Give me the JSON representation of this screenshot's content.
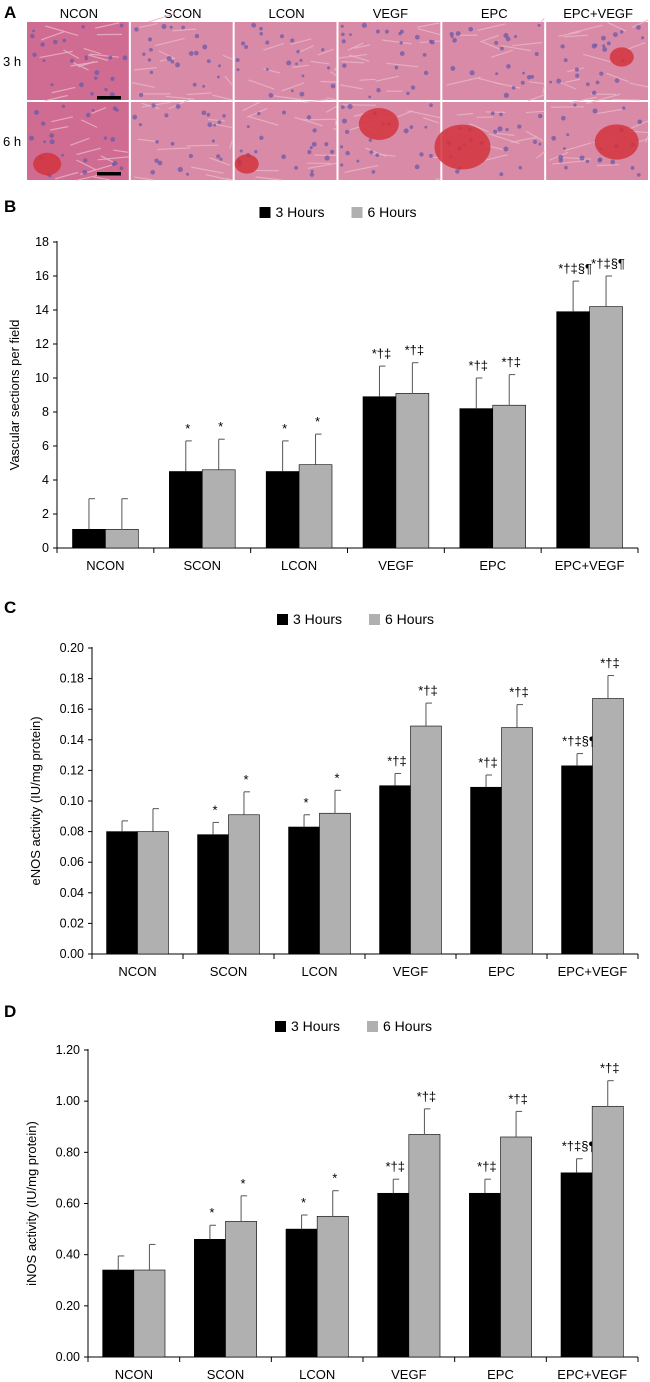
{
  "panel_a": {
    "letter": "A",
    "columns": [
      "NCON",
      "SCON",
      "LCON",
      "VEGF",
      "EPC",
      "EPC+VEGF"
    ],
    "rows": [
      "3 h",
      "6 h"
    ],
    "colors": {
      "tissue": "#d98aa6",
      "stroma": "#e8b7c8",
      "nuclei": "#6a5aa8",
      "blood": "#d2323c"
    }
  },
  "chart_data": [
    {
      "id": "B",
      "type": "bar",
      "letter": "B",
      "categories": [
        "NCON",
        "SCON",
        "LCON",
        "VEGF",
        "EPC",
        "EPC+VEGF"
      ],
      "series": [
        {
          "name": "3 Hours",
          "color": "#000000",
          "values": [
            1.1,
            4.5,
            4.5,
            8.9,
            8.2,
            13.9
          ],
          "errors": [
            1.8,
            1.8,
            1.8,
            1.8,
            1.8,
            1.8
          ],
          "annotations": [
            "",
            "*",
            "*",
            "*†‡",
            "*†‡",
            "*†‡§¶"
          ]
        },
        {
          "name": "6 Hours",
          "color": "#b0b0b0",
          "values": [
            1.1,
            4.6,
            4.9,
            9.1,
            8.4,
            14.2
          ],
          "errors": [
            1.8,
            1.8,
            1.8,
            1.8,
            1.8,
            1.8
          ],
          "annotations": [
            "",
            "*",
            "*",
            "*†‡",
            "*†‡",
            "*†‡§¶"
          ]
        }
      ],
      "ylabel": "Vascular sections per field",
      "ylim": [
        0,
        18
      ],
      "yticks": [
        "0",
        "2",
        "4",
        "6",
        "8",
        "10",
        "12",
        "14",
        "16",
        "18"
      ],
      "legend_position": "top-center"
    },
    {
      "id": "C",
      "type": "bar",
      "letter": "C",
      "categories": [
        "NCON",
        "SCON",
        "LCON",
        "VEGF",
        "EPC",
        "EPC+VEGF"
      ],
      "series": [
        {
          "name": "3 Hours",
          "color": "#000000",
          "values": [
            0.08,
            0.078,
            0.083,
            0.11,
            0.109,
            0.123
          ],
          "errors": [
            0.007,
            0.008,
            0.008,
            0.008,
            0.008,
            0.008
          ],
          "annotations": [
            "",
            "*",
            "*",
            "*†‡",
            "*†‡",
            "*†‡§¶"
          ]
        },
        {
          "name": "6 Hours",
          "color": "#b0b0b0",
          "values": [
            0.08,
            0.091,
            0.092,
            0.149,
            0.148,
            0.167
          ],
          "errors": [
            0.015,
            0.015,
            0.015,
            0.015,
            0.015,
            0.015
          ],
          "annotations": [
            "",
            "*",
            "*",
            "*†‡",
            "*†‡",
            "*†‡"
          ]
        }
      ],
      "ylabel": "eNOS activity (IU/mg protein)",
      "ylim": [
        0,
        0.2
      ],
      "yticks": [
        "0.00",
        "0.02",
        "0.04",
        "0.06",
        "0.08",
        "0.10",
        "0.12",
        "0.14",
        "0.16",
        "0.18",
        "0.20"
      ],
      "legend_position": "top-center"
    },
    {
      "id": "D",
      "type": "bar",
      "letter": "D",
      "categories": [
        "NCON",
        "SCON",
        "LCON",
        "VEGF",
        "EPC",
        "EPC+VEGF"
      ],
      "series": [
        {
          "name": "3 Hours",
          "color": "#000000",
          "values": [
            0.34,
            0.46,
            0.5,
            0.64,
            0.64,
            0.72
          ],
          "errors": [
            0.055,
            0.055,
            0.055,
            0.055,
            0.055,
            0.055
          ],
          "annotations": [
            "",
            "*",
            "*",
            "*†‡",
            "*†‡",
            "*†‡§¶"
          ]
        },
        {
          "name": "6 Hours",
          "color": "#b0b0b0",
          "values": [
            0.34,
            0.53,
            0.55,
            0.87,
            0.86,
            0.98
          ],
          "errors": [
            0.1,
            0.1,
            0.1,
            0.1,
            0.1,
            0.1
          ],
          "annotations": [
            "",
            "*",
            "*",
            "*†‡",
            "*†‡",
            "*†‡"
          ]
        }
      ],
      "ylabel": "iNOS activity (IU/mg protein)",
      "ylim": [
        0,
        1.2
      ],
      "yticks": [
        "0.00",
        "0.20",
        "0.40",
        "0.60",
        "0.80",
        "1.00",
        "1.20"
      ],
      "legend_position": "top-center"
    }
  ]
}
